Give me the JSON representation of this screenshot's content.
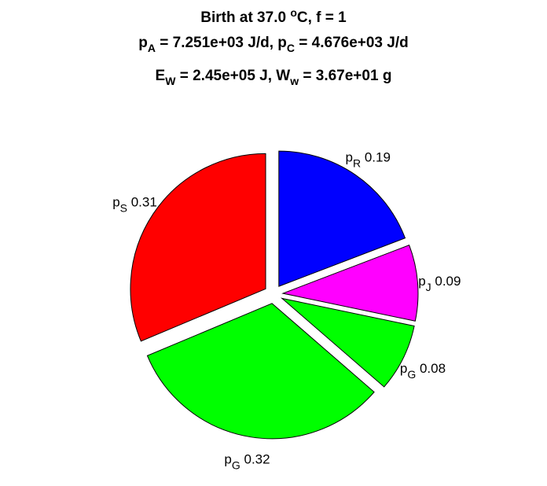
{
  "chart_data": {
    "type": "pie",
    "title_lines": [
      {
        "parts": [
          "Birth at 37.0 ",
          "o",
          "C, f = 1"
        ]
      },
      {
        "parts": [
          "p",
          "A",
          " = 7.251e+03 J/d, p",
          "C",
          " = 4.676e+03 J/d"
        ]
      },
      {
        "parts": [
          "E",
          "W",
          " = 2.45e+05 J, W",
          "w",
          " = 3.67e+01 g"
        ]
      }
    ],
    "slices": [
      {
        "sym": "p",
        "sub": "R",
        "value_label": "0.19",
        "value": 0.19,
        "color": "#0000ff"
      },
      {
        "sym": "p",
        "sub": "J",
        "value_label": "0.09",
        "value": 0.09,
        "color": "#ff00ff"
      },
      {
        "sym": "p",
        "sub": "G",
        "value_label": "0.08",
        "value": 0.08,
        "color": "#00ff00"
      },
      {
        "sym": "p",
        "sub": "G",
        "value_label": "0.32",
        "value": 0.32,
        "color": "#00ff00"
      },
      {
        "sym": "p",
        "sub": "S",
        "value_label": "0.31",
        "value": 0.31,
        "color": "#ff0000"
      }
    ]
  }
}
